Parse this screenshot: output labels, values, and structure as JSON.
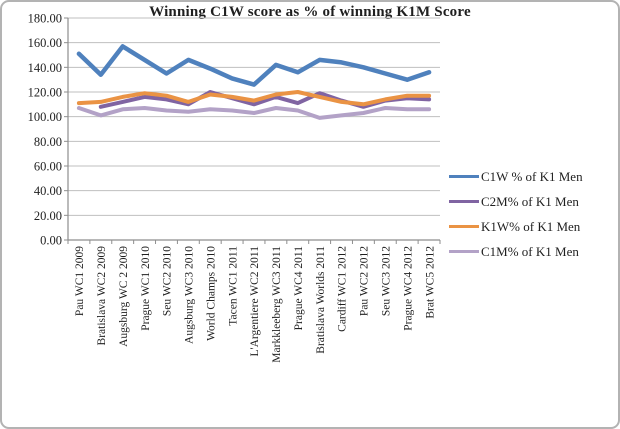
{
  "chart_data": {
    "type": "line",
    "title": "Winning C1W score as % of winning K1M Score",
    "categories": [
      "Pau WC1 2009",
      "Bratislava WC2 2009",
      "Augsburg WC 2 2009",
      "Prague WC1 2010",
      "Seu WC2 2010",
      "Augsburg WC3 2010",
      "World Champs 2010",
      "Tacen WC1 2011",
      "L'Argentiere WC2 2011",
      "Markkleeberg WC3 2011",
      "Prague WC4 2011",
      "Bratislava Worlds 2011",
      "Cardiff WC1 2012",
      "Pau WC2 2012",
      "Seu WC3 2012",
      "Prague WC4 2012",
      "Brat WC5 2012"
    ],
    "series": [
      {
        "name": "C1W % of K1 Men",
        "color": "#4f81bd",
        "values": [
          151,
          134,
          157,
          146,
          135,
          146,
          139,
          131,
          126,
          142,
          136,
          146,
          144,
          140,
          135,
          130,
          136
        ]
      },
      {
        "name": "C2M% of K1 Men",
        "color": "#8064a2",
        "values": [
          null,
          108,
          112,
          116,
          114,
          110,
          120,
          115,
          110,
          116,
          111,
          119,
          113,
          108,
          113,
          115,
          114
        ]
      },
      {
        "name": "K1W% of K1 Men",
        "color": "#ea9344",
        "values": [
          111,
          112,
          116,
          119,
          117,
          112,
          118,
          116,
          113,
          118,
          120,
          116,
          112,
          110,
          114,
          117,
          117
        ]
      },
      {
        "name": "C1M% of K1 Men",
        "color": "#b3a2c7",
        "values": [
          107,
          101,
          106,
          107,
          105,
          104,
          106,
          105,
          103,
          107,
          105,
          99,
          101,
          103,
          107,
          106,
          106
        ]
      }
    ],
    "y_axis": {
      "min": 0,
      "max": 180,
      "step": 20,
      "tick_labels": [
        "0.00",
        "20.00",
        "40.00",
        "60.00",
        "80.00",
        "100.00",
        "120.00",
        "140.00",
        "160.00",
        "180.00"
      ]
    },
    "grid": true,
    "legend_position": "right",
    "colors": {
      "gridline": "#bfbfbf",
      "axis": "#8e8e8e",
      "frame_border": "#b3b3b3",
      "text": "#1f1f1f"
    }
  }
}
